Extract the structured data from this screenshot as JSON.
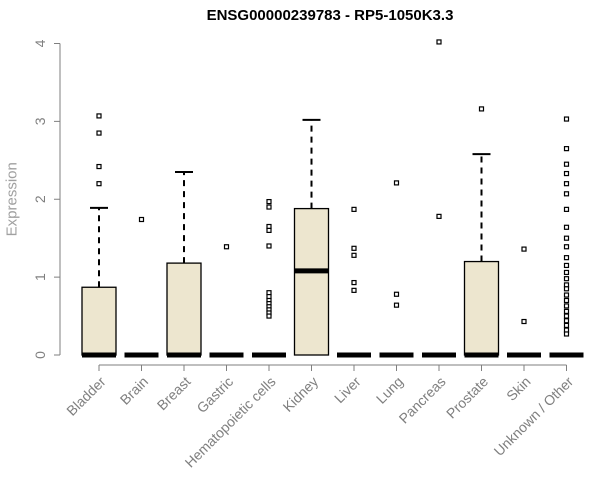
{
  "chart_data": {
    "type": "box",
    "title": "ENSG00000239783 - RP5-1050K3.3",
    "ylabel": "Expression",
    "xlabel": "",
    "ylim": [
      0,
      4
    ],
    "yticks": [
      0,
      1,
      2,
      3,
      4
    ],
    "ytick_labels": [
      "0",
      "1",
      "2",
      "3",
      "4"
    ],
    "categories": [
      "Bladder",
      "Brain",
      "Breast",
      "Gastric",
      "Hematopoietic cells",
      "Kidney",
      "Liver",
      "Lung",
      "Pancreas",
      "Prostate",
      "Skin",
      "Unknown / Other"
    ],
    "box_fill": "#ede6cf",
    "boxes": [
      {
        "category": "Bladder",
        "min": 0,
        "q1": 0,
        "median": 0,
        "q3": 0.87,
        "max": 1.89,
        "outliers": [
          3.07,
          2.85,
          2.42,
          2.2
        ]
      },
      {
        "category": "Brain",
        "min": 0,
        "q1": 0,
        "median": 0,
        "q3": 0,
        "max": 0,
        "outliers": [
          1.74
        ]
      },
      {
        "category": "Breast",
        "min": 0,
        "q1": 0,
        "median": 0,
        "q3": 1.18,
        "max": 2.35,
        "outliers": []
      },
      {
        "category": "Gastric",
        "min": 0,
        "q1": 0,
        "median": 0,
        "q3": 0,
        "max": 0,
        "outliers": [
          1.39
        ]
      },
      {
        "category": "Hematopoietic cells",
        "min": 0,
        "q1": 0,
        "median": 0,
        "q3": 0,
        "max": 0,
        "outliers": [
          1.97,
          1.9,
          1.65,
          1.6,
          1.4,
          0.8,
          0.75,
          0.7,
          0.66,
          0.62,
          0.58,
          0.54,
          0.5
        ]
      },
      {
        "category": "Kidney",
        "min": 0,
        "q1": 0,
        "median": 1.08,
        "q3": 1.88,
        "max": 3.02,
        "outliers": []
      },
      {
        "category": "Liver",
        "min": 0,
        "q1": 0,
        "median": 0,
        "q3": 0,
        "max": 0,
        "outliers": [
          1.87,
          1.37,
          1.28,
          0.93,
          0.83
        ]
      },
      {
        "category": "Lung",
        "min": 0,
        "q1": 0,
        "median": 0,
        "q3": 0,
        "max": 0,
        "outliers": [
          2.21,
          0.78,
          0.64
        ]
      },
      {
        "category": "Pancreas",
        "min": 0,
        "q1": 0,
        "median": 0,
        "q3": 0,
        "max": 0,
        "outliers": [
          4.02,
          1.78
        ]
      },
      {
        "category": "Prostate",
        "min": 0,
        "q1": 0,
        "median": 0,
        "q3": 1.2,
        "max": 2.58,
        "outliers": [
          3.16
        ]
      },
      {
        "category": "Skin",
        "min": 0,
        "q1": 0,
        "median": 0,
        "q3": 0,
        "max": 0,
        "outliers": [
          1.36,
          0.43
        ]
      },
      {
        "category": "Unknown / Other",
        "min": 0,
        "q1": 0,
        "median": 0,
        "q3": 0,
        "max": 0,
        "outliers": [
          3.03,
          2.65,
          2.45,
          2.33,
          2.2,
          2.07,
          1.87,
          1.64,
          1.5,
          1.39,
          1.25,
          1.15,
          1.06,
          0.98,
          0.9,
          0.85,
          0.77,
          0.7,
          0.63,
          0.56,
          0.5,
          0.44,
          0.38,
          0.32,
          0.27
        ]
      }
    ]
  }
}
